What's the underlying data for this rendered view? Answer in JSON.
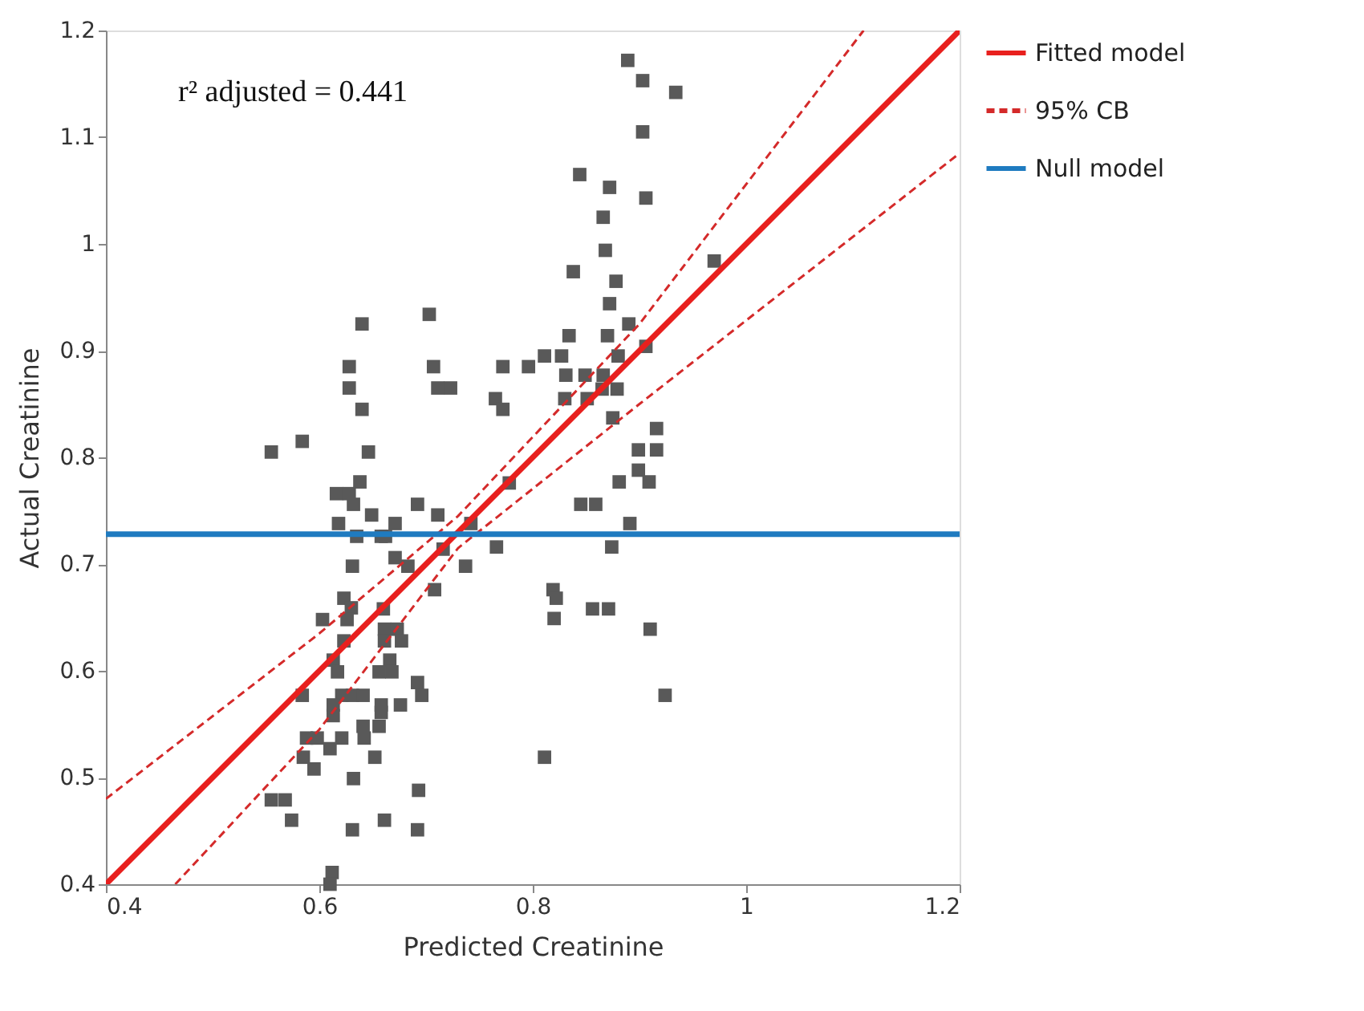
{
  "chart_data": {
    "type": "scatter",
    "xlabel": "Predicted Creatinine",
    "ylabel": "Actual Creatinine",
    "annotations": [
      "r² adjusted = 0.441"
    ],
    "xlim": [
      0.4,
      1.2
    ],
    "ylim": [
      0.4,
      1.2
    ],
    "xticks": [
      0.4,
      0.6,
      0.8,
      {
        "value": 1.0,
        "label": "1"
      },
      1.2
    ],
    "yticks": [
      0.4,
      0.5,
      0.6,
      0.7,
      0.8,
      0.9,
      {
        "value": 1.0,
        "label": "1"
      },
      1.1,
      1.2
    ],
    "grid": false,
    "legend": "right",
    "series": [
      {
        "color": "#595959",
        "marker": "square",
        "x": [
          0.638,
          0.616,
          0.628,
          0.632,
          0.692,
          0.711,
          0.649,
          0.671,
          0.618,
          0.778,
          0.742,
          0.635,
          0.658,
          0.662,
          0.766,
          0.716,
          0.631,
          0.671,
          0.683,
          0.737,
          0.708,
          0.623,
          0.63,
          0.66,
          0.603,
          0.626,
          0.661,
          0.673,
          0.623,
          0.661,
          0.677,
          0.613,
          0.666,
          0.656,
          0.617,
          0.668,
          0.692,
          0.696,
          0.584,
          0.621,
          0.631,
          0.641,
          0.613,
          0.658,
          0.676,
          0.613,
          0.658,
          0.641,
          0.656,
          0.588,
          0.598,
          0.621,
          0.642,
          0.61,
          0.585,
          0.652,
          0.595,
          0.632,
          0.693,
          0.555,
          0.568,
          0.574,
          0.661,
          0.631,
          0.692,
          0.612,
          0.61,
          0.899,
          0.881,
          0.909,
          0.845,
          0.859,
          0.891,
          0.874,
          0.819,
          0.822,
          0.82,
          0.856,
          0.871,
          0.91,
          0.924,
          0.811,
          0.889,
          0.903,
          0.934,
          0.903,
          0.844,
          0.872,
          0.906,
          0.866,
          0.868,
          0.97,
          0.838,
          0.878,
          0.872,
          0.89,
          0.834,
          0.87,
          0.906,
          0.811,
          0.827,
          0.88,
          0.831,
          0.849,
          0.866,
          0.83,
          0.851,
          0.865,
          0.879,
          0.875,
          0.916,
          0.899,
          0.916,
          0.703,
          0.64,
          0.628,
          0.707,
          0.628,
          0.711,
          0.723,
          0.64,
          0.772,
          0.796,
          0.765,
          0.772,
          0.555,
          0.584,
          0.646
        ],
        "values": [
          0.777,
          0.766,
          0.766,
          0.756,
          0.756,
          0.746,
          0.746,
          0.738,
          0.738,
          0.776,
          0.738,
          0.726,
          0.726,
          0.726,
          0.716,
          0.714,
          0.698,
          0.706,
          0.698,
          0.698,
          0.676,
          0.668,
          0.659,
          0.658,
          0.648,
          0.648,
          0.639,
          0.639,
          0.628,
          0.628,
          0.628,
          0.61,
          0.61,
          0.599,
          0.599,
          0.599,
          0.589,
          0.577,
          0.577,
          0.577,
          0.577,
          0.577,
          0.568,
          0.568,
          0.568,
          0.558,
          0.561,
          0.548,
          0.548,
          0.537,
          0.537,
          0.537,
          0.537,
          0.527,
          0.519,
          0.519,
          0.508,
          0.499,
          0.488,
          0.479,
          0.479,
          0.46,
          0.46,
          0.451,
          0.451,
          0.411,
          0.4,
          0.788,
          0.777,
          0.777,
          0.756,
          0.756,
          0.738,
          0.716,
          0.676,
          0.668,
          0.649,
          0.658,
          0.658,
          0.639,
          0.577,
          0.519,
          1.172,
          1.153,
          1.142,
          1.105,
          1.065,
          1.053,
          1.043,
          1.025,
          0.994,
          0.984,
          0.974,
          0.965,
          0.944,
          0.925,
          0.914,
          0.914,
          0.904,
          0.895,
          0.895,
          0.895,
          0.877,
          0.877,
          0.877,
          0.855,
          0.855,
          0.864,
          0.864,
          0.837,
          0.827,
          0.807,
          0.807,
          0.934,
          0.925,
          0.885,
          0.885,
          0.865,
          0.865,
          0.865,
          0.845,
          0.885,
          0.885,
          0.855,
          0.845,
          0.805,
          0.815,
          0.805
        ]
      },
      {
        "type": "line",
        "name": "Fitted model",
        "color": "#e8201e",
        "line_style": "solid",
        "x": [
          0.4,
          1.2
        ],
        "values": [
          0.4,
          1.2
        ]
      },
      {
        "type": "line",
        "name": "95% CB",
        "color": "#d42a2a",
        "line_style": "dashed",
        "x": [
          0.4,
          0.6,
          0.73,
          0.9,
          1.11
        ],
        "values": [
          0.48,
          0.635,
          0.745,
          0.925,
          1.2
        ]
      },
      {
        "type": "line",
        "color": "#d42a2a",
        "line_style": "dashed",
        "x": [
          0.465,
          0.6,
          0.73,
          0.9,
          1.2
        ],
        "values": [
          0.4,
          0.545,
          0.715,
          0.85,
          1.085
        ]
      },
      {
        "type": "line",
        "name": "Null model",
        "color": "#1f7bc0",
        "line_style": "solid",
        "x": [
          0.4,
          1.2
        ],
        "values": [
          0.728,
          0.728
        ]
      }
    ]
  }
}
